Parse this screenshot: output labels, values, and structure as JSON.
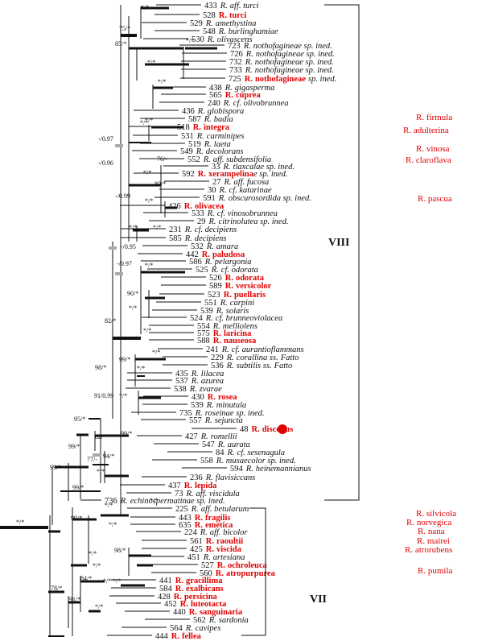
{
  "colors": {
    "highlight": "#e00000",
    "line": "#111111",
    "grey": "#aaaaaa"
  },
  "taxa": [
    {
      "num": "433",
      "pre": "R.",
      "name": "aff. turci",
      "hl": false
    },
    {
      "num": "528",
      "pre": "R.",
      "name": "turci",
      "hl": true
    },
    {
      "num": "529",
      "pre": "R.",
      "name": "amethystina",
      "hl": false
    },
    {
      "num": "548",
      "pre": "R.",
      "name": "burlinghamiae",
      "hl": false
    },
    {
      "num": "530",
      "pre": "R.",
      "name": "olivascens",
      "hl": false
    },
    {
      "num": "723",
      "pre": "R.",
      "name": "nothofagineae sp. ined.",
      "hl": false
    },
    {
      "num": "726",
      "pre": "R.",
      "name": "nothofagineae sp. ined.",
      "hl": false
    },
    {
      "num": "732",
      "pre": "R.",
      "name": "nothofagineae sp. ined.",
      "hl": false
    },
    {
      "num": "733",
      "pre": "R.",
      "name": "nothofagineae sp. ined.",
      "hl": false
    },
    {
      "num": "725",
      "pre": "R.",
      "name": "nothofagineae",
      "suf": "sp. ined.",
      "hl": true
    },
    {
      "num": "438",
      "pre": "R.",
      "name": "gigasperma",
      "hl": false
    },
    {
      "num": "565",
      "pre": "R.",
      "name": "cuprea",
      "hl": true
    },
    {
      "num": "240",
      "pre": "R.",
      "name": "cf. olivobrunnea",
      "hl": false
    },
    {
      "num": "436",
      "pre": "R.",
      "name": "globispora",
      "hl": false
    },
    {
      "num": "587",
      "pre": "R.",
      "name": "badia",
      "hl": false
    },
    {
      "num": "518",
      "pre": "R.",
      "name": "integra",
      "hl": true
    },
    {
      "num": "531",
      "pre": "R.",
      "name": "carminipes",
      "hl": false
    },
    {
      "num": "519",
      "pre": "R.",
      "name": "laeta",
      "hl": false
    },
    {
      "num": "549",
      "pre": "R.",
      "name": "decolorans",
      "hl": false
    },
    {
      "num": "552",
      "pre": "R.",
      "name": "aff. subdensifolia",
      "hl": false
    },
    {
      "num": "33",
      "pre": "R.",
      "name": "tlaxcalae sp. ined.",
      "hl": false
    },
    {
      "num": "592",
      "pre": "R.",
      "name": "xerampelina",
      "suf": "e sp. ined.",
      "hl": true
    },
    {
      "num": "27",
      "pre": "R.",
      "name": "aff. fucosa",
      "hl": false
    },
    {
      "num": "30",
      "pre": "R.",
      "name": "cf. katarinae",
      "hl": false
    },
    {
      "num": "591",
      "pre": "R.",
      "name": "obscurosordida sp. ined.",
      "hl": false
    },
    {
      "num": "426",
      "pre": "R.",
      "name": "olivacea",
      "hl": true
    },
    {
      "num": "533",
      "pre": "R.",
      "name": "cf. vinosobrunnea",
      "hl": false
    },
    {
      "num": "29",
      "pre": "R.",
      "name": "citrinolutea sp. ined.",
      "hl": false
    },
    {
      "num": "231",
      "pre": "R.",
      "name": "cf. decipiens",
      "hl": false
    },
    {
      "num": "585",
      "pre": "R.",
      "name": "decipiens",
      "hl": false
    },
    {
      "num": "532",
      "pre": "R.",
      "name": "amara",
      "hl": false
    },
    {
      "num": "442",
      "pre": "R.",
      "name": "paludosa",
      "hl": true
    },
    {
      "num": "586",
      "pre": "R.",
      "name": "pelargonia",
      "hl": false
    },
    {
      "num": "525",
      "pre": "R.",
      "name": "cf. odorata",
      "hl": false
    },
    {
      "num": "526",
      "pre": "R.",
      "name": "odorata",
      "hl": true
    },
    {
      "num": "589",
      "pre": "R.",
      "name": "versicolor",
      "hl": true
    },
    {
      "num": "523",
      "pre": "R.",
      "name": "puellaris",
      "hl": true
    },
    {
      "num": "551",
      "pre": "R.",
      "name": "carpini",
      "hl": false
    },
    {
      "num": "539",
      "pre": "R.",
      "name": "solaris",
      "hl": false
    },
    {
      "num": "524",
      "pre": "R.",
      "name": "cf. brunneoviolacea",
      "hl": false
    },
    {
      "num": "554",
      "pre": "R.",
      "name": "melliolens",
      "hl": false
    },
    {
      "num": "575",
      "pre": "R.",
      "name": "laricina",
      "hl": true
    },
    {
      "num": "588",
      "pre": "R.",
      "name": "nauseosa",
      "hl": true
    },
    {
      "num": "241",
      "pre": "R.",
      "name": "cf. aurantioflammans",
      "hl": false
    },
    {
      "num": "229",
      "pre": "R.",
      "name": "corallina ss.",
      "suf": "Fatto",
      "hl": false
    },
    {
      "num": "536",
      "pre": "R.",
      "name": "subtilis ss.",
      "suf": "Fatto",
      "hl": false
    },
    {
      "num": "435",
      "pre": "R.",
      "name": "lilacea",
      "hl": false
    },
    {
      "num": "537",
      "pre": "R.",
      "name": "azurea",
      "hl": false
    },
    {
      "num": "538",
      "pre": "R.",
      "name": "zvarae",
      "hl": false
    },
    {
      "num": "430",
      "pre": "R.",
      "name": "rosea",
      "hl": true
    },
    {
      "num": "539",
      "pre": "R.",
      "name": "minutula",
      "hl": false
    },
    {
      "num": "735",
      "pre": "R.",
      "name": "roseinae sp. ined.",
      "hl": false
    },
    {
      "num": "557",
      "pre": "R.",
      "name": "sejuncta",
      "hl": false
    },
    {
      "num": "48",
      "pre": "R.",
      "name": "discopus",
      "hl": true
    },
    {
      "num": "427",
      "pre": "R.",
      "name": "romellii",
      "hl": false
    },
    {
      "num": "547",
      "pre": "R.",
      "name": "aurata",
      "hl": false
    },
    {
      "num": "84",
      "pre": "R.",
      "name": "cf. sesenagula",
      "hl": false
    },
    {
      "num": "558",
      "pre": "R.",
      "name": "musaecolor sp. ined.",
      "hl": false
    },
    {
      "num": "594",
      "pre": "R.",
      "name": "heinemannianus",
      "hl": false
    },
    {
      "num": "236",
      "pre": "R.",
      "name": "flavisiccans",
      "hl": false
    },
    {
      "num": "437",
      "pre": "R.",
      "name": "lepida",
      "hl": true
    },
    {
      "num": "73",
      "pre": "R.",
      "name": "aff. viscidula",
      "hl": false
    },
    {
      "num": "736",
      "pre": "R.",
      "name": "echinospermatinae sp. ined.",
      "hl": false
    },
    {
      "num": "225",
      "pre": "R.",
      "name": "aff. betularum",
      "hl": false
    },
    {
      "num": "443",
      "pre": "R.",
      "name": "fragilis",
      "hl": true
    },
    {
      "num": "635",
      "pre": "R.",
      "name": "emetica",
      "hl": true
    },
    {
      "num": "224",
      "pre": "R.",
      "name": "aff. bicolor",
      "hl": false
    },
    {
      "num": "561",
      "pre": "R.",
      "name": "raoultii",
      "hl": true
    },
    {
      "num": "425",
      "pre": "R.",
      "name": "viscida",
      "hl": true
    },
    {
      "num": "451",
      "pre": "R.",
      "name": "artesiana",
      "hl": false
    },
    {
      "num": "527",
      "pre": "R.",
      "name": "ochroleuca",
      "hl": true
    },
    {
      "num": "560",
      "pre": "R.",
      "name": "atropurpurea",
      "hl": true
    },
    {
      "num": "441",
      "pre": "R.",
      "name": "gracillima",
      "hl": true
    },
    {
      "num": "584",
      "pre": "R.",
      "name": "exalbicans",
      "hl": true
    },
    {
      "num": "428",
      "pre": "R.",
      "name": "persicina",
      "hl": true
    },
    {
      "num": "452",
      "pre": "R.",
      "name": "luteotacta",
      "hl": true
    },
    {
      "num": "440",
      "pre": "R.",
      "name": "sanguinaria",
      "hl": true
    },
    {
      "num": "562",
      "pre": "R.",
      "name": "sardonia",
      "hl": false
    },
    {
      "num": "564",
      "pre": "R.",
      "name": "cavipes",
      "hl": false
    },
    {
      "num": "444",
      "pre": "R.",
      "name": "fellea",
      "hl": true
    }
  ],
  "supports": [
    "*/*",
    "75/*",
    "85/*",
    "*/*",
    "*/*",
    "*/*",
    "*/*",
    "*/*",
    "-/0.97",
    "-/0.96",
    "76/-",
    "*/*",
    "80/*",
    "*/*",
    "-/0.99",
    "*/*",
    "*/*",
    "-/0.95",
    "-/0.97",
    "*/*",
    "90/*",
    "*/*",
    "82/*",
    "*/*",
    "99/*",
    "*/*",
    "*/*",
    "98/*",
    "91/0.99",
    "*/*",
    "95/*",
    "82/*",
    "99/*",
    "99/*",
    "77/-",
    "94/*",
    "*/*",
    "99/*",
    "99/*",
    "*/*",
    "*/*",
    "99/*",
    "*/*",
    "98/*",
    "*/*",
    "*/*",
    "84/*",
    "*/*",
    "91/*",
    "*/*",
    "*/*",
    "78/*",
    "*/*"
  ],
  "side_labels": [
    "R. firmula",
    "R. adulterina",
    "R. vinosa",
    "R. claroflava",
    "R. pascua",
    "R. silvicola",
    "R. norvegica",
    "R. nana",
    "R. mairei",
    "R. atrorubens",
    "R. pumila"
  ],
  "clades": [
    "VIII",
    "VII"
  ]
}
